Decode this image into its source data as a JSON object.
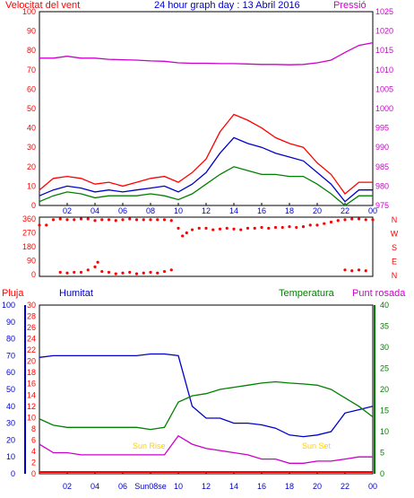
{
  "chart_data": [
    {
      "type": "line",
      "title": "24 hour graph day : 13 Abril 2016",
      "ylabel_left": "Velocitat del vent",
      "ylabel_right": "Pressió",
      "x_ticks": [
        "02",
        "04",
        "06",
        "08",
        "10",
        "12",
        "14",
        "16",
        "18",
        "20",
        "22",
        "00"
      ],
      "y_left_ticks": [
        "0",
        "10",
        "20",
        "30",
        "40",
        "50",
        "60",
        "70",
        "80",
        "90",
        "100"
      ],
      "y_right_ticks": [
        "975",
        "980",
        "985",
        "990",
        "995",
        "1000",
        "1005",
        "1010",
        "1015",
        "1020",
        "1025"
      ],
      "ylim_left": [
        0,
        100
      ],
      "ylim_right": [
        975,
        1025
      ],
      "colors": {
        "gust": "#ff0000",
        "average": "#0000cc",
        "min": "#008000",
        "pressure": "#cc00cc"
      },
      "x_hours": [
        0,
        1,
        2,
        3,
        4,
        5,
        6,
        7,
        8,
        9,
        10,
        11,
        12,
        13,
        14,
        15,
        16,
        17,
        18,
        19,
        20,
        21,
        22,
        23,
        24
      ],
      "series": [
        {
          "key": "gust",
          "values": [
            8,
            14,
            15,
            14,
            11,
            12,
            10,
            12,
            14,
            15,
            12,
            17,
            24,
            38,
            47,
            44,
            40,
            35,
            32,
            30,
            22,
            16,
            6,
            12,
            12
          ]
        },
        {
          "key": "average",
          "values": [
            5,
            8,
            10,
            9,
            7,
            8,
            7,
            8,
            9,
            10,
            7,
            11,
            17,
            27,
            35,
            32,
            30,
            27,
            25,
            23,
            17,
            11,
            2,
            8,
            8
          ]
        },
        {
          "key": "min",
          "values": [
            2,
            5,
            7,
            6,
            4,
            5,
            5,
            5,
            6,
            5,
            3,
            6,
            11,
            16,
            20,
            18,
            16,
            16,
            15,
            15,
            11,
            6,
            0,
            5,
            5
          ]
        },
        {
          "key": "pressure",
          "values": [
            1013,
            1013,
            1013.5,
            1013,
            1013,
            1012.7,
            1012.6,
            1012.5,
            1012.3,
            1012.2,
            1011.8,
            1011.7,
            1011.7,
            1011.6,
            1011.6,
            1011.5,
            1011.4,
            1011.4,
            1011.3,
            1011.4,
            1011.8,
            1012.5,
            1014.5,
            1016.3,
            1017
          ]
        }
      ]
    },
    {
      "type": "scatter",
      "y_ticks": [
        "360",
        "270",
        "180",
        "90",
        "0"
      ],
      "y_right_ticks": [
        "N",
        "W",
        "S",
        "E",
        "N"
      ],
      "ylim": [
        0,
        360
      ],
      "colors": {
        "direction": "#ff0000"
      },
      "points": [
        [
          0,
          320
        ],
        [
          0.5,
          320
        ],
        [
          1,
          355
        ],
        [
          1.5,
          360
        ],
        [
          2,
          355
        ],
        [
          2.5,
          355
        ],
        [
          3,
          360
        ],
        [
          3.5,
          360
        ],
        [
          4,
          350
        ],
        [
          4.5,
          355
        ],
        [
          5,
          355
        ],
        [
          5.5,
          350
        ],
        [
          6,
          355
        ],
        [
          6.5,
          360
        ],
        [
          7,
          355
        ],
        [
          7.5,
          355
        ],
        [
          8,
          355
        ],
        [
          8.5,
          355
        ],
        [
          9,
          355
        ],
        [
          9.5,
          350
        ],
        [
          10,
          300
        ],
        [
          10.3,
          250
        ],
        [
          10.6,
          270
        ],
        [
          11,
          290
        ],
        [
          11.5,
          300
        ],
        [
          12,
          300
        ],
        [
          12.5,
          290
        ],
        [
          13,
          295
        ],
        [
          13.5,
          300
        ],
        [
          14,
          295
        ],
        [
          14.5,
          290
        ],
        [
          15,
          300
        ],
        [
          15.5,
          300
        ],
        [
          16,
          305
        ],
        [
          16.5,
          300
        ],
        [
          17,
          305
        ],
        [
          17.5,
          305
        ],
        [
          18,
          310
        ],
        [
          18.5,
          305
        ],
        [
          19,
          310
        ],
        [
          19.5,
          320
        ],
        [
          20,
          320
        ],
        [
          20.5,
          330
        ],
        [
          21,
          340
        ],
        [
          21.5,
          350
        ],
        [
          22,
          355
        ],
        [
          22.5,
          360
        ],
        [
          23,
          360
        ],
        [
          23.5,
          355
        ],
        [
          24,
          355
        ],
        [
          1.5,
          15
        ],
        [
          2,
          10
        ],
        [
          2.5,
          15
        ],
        [
          3,
          15
        ],
        [
          3.5,
          30
        ],
        [
          4,
          50
        ],
        [
          4.2,
          80
        ],
        [
          4.5,
          20
        ],
        [
          5,
          15
        ],
        [
          5.5,
          5
        ],
        [
          6,
          10
        ],
        [
          6.5,
          15
        ],
        [
          7,
          5
        ],
        [
          7.5,
          10
        ],
        [
          8,
          15
        ],
        [
          8.5,
          10
        ],
        [
          9,
          20
        ],
        [
          9.5,
          30
        ],
        [
          22,
          30
        ],
        [
          22.5,
          25
        ],
        [
          23,
          30
        ],
        [
          23.5,
          25
        ]
      ]
    },
    {
      "type": "line",
      "legend": [
        "Pluja",
        "Humitat",
        "Temperatura",
        "Punt rosada"
      ],
      "y_rain_ticks": [
        "0",
        "2",
        "4",
        "6",
        "8",
        "10",
        "12",
        "14",
        "16",
        "18",
        "20",
        "22",
        "24",
        "26",
        "28",
        "30"
      ],
      "y_humidity_ticks": [
        "0",
        "10",
        "20",
        "30",
        "40",
        "50",
        "60",
        "70",
        "80",
        "90",
        "100"
      ],
      "y_temperature_ticks": [
        "0",
        "5",
        "10",
        "15",
        "20",
        "25",
        "30",
        "35",
        "40"
      ],
      "x_ticks": [
        "02",
        "04",
        "06",
        "Sun08se",
        "10",
        "12",
        "14",
        "16",
        "18",
        "20",
        "22",
        "00"
      ],
      "annotations": [
        "Sun Rise",
        "Sun Set"
      ],
      "colors": {
        "rain": "#ff0000",
        "humidity": "#0000cc",
        "temperature": "#008000",
        "dewpoint": "#cc00cc"
      },
      "x_hours": [
        0,
        1,
        2,
        3,
        4,
        5,
        6,
        7,
        8,
        9,
        10,
        11,
        12,
        13,
        14,
        15,
        16,
        17,
        18,
        19,
        20,
        21,
        22,
        23,
        24
      ],
      "series": [
        {
          "key": "humidity",
          "values": [
            69,
            70,
            70,
            70,
            70,
            70,
            70,
            70,
            71,
            71,
            70,
            40,
            33,
            33,
            30,
            30,
            29,
            27,
            23,
            22,
            23,
            25,
            36,
            38,
            40
          ]
        },
        {
          "key": "temperature",
          "values": [
            13,
            11.5,
            11,
            11,
            11,
            11,
            11,
            11,
            10.5,
            11,
            17,
            18.5,
            19,
            20,
            20.5,
            21,
            21.5,
            21.8,
            21.5,
            21.3,
            21,
            20,
            18,
            16,
            13.5
          ]
        },
        {
          "key": "dewpoint",
          "values": [
            7,
            5,
            5,
            4.5,
            4.5,
            4.5,
            4.5,
            4.5,
            4.5,
            4.5,
            9,
            7,
            6,
            5.5,
            5,
            4.5,
            3.5,
            3.5,
            2.5,
            2.5,
            3,
            3,
            3.5,
            4,
            4
          ]
        },
        {
          "key": "rain",
          "values": [
            0,
            0,
            0,
            0,
            0,
            0,
            0,
            0,
            0,
            0,
            0,
            0,
            0,
            0,
            0,
            0,
            0,
            0,
            0,
            0,
            0,
            0,
            0,
            0,
            0
          ]
        }
      ]
    }
  ]
}
